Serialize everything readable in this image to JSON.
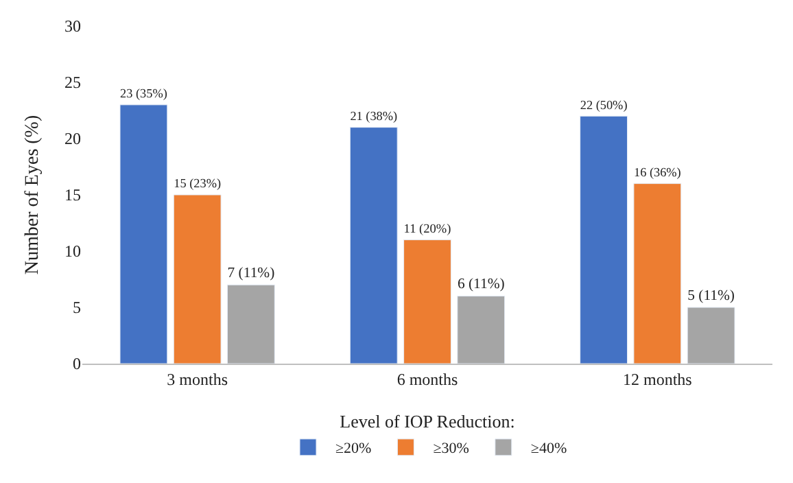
{
  "chart_data": {
    "type": "bar",
    "ylabel": "Number of Eyes (%)",
    "legend_title": "Level of IOP Reduction:",
    "categories": [
      "3 months",
      "6 months",
      "12 months"
    ],
    "series": [
      {
        "name": "≥20%",
        "color": "#4472c4",
        "values": [
          23,
          21,
          22
        ],
        "value_labels": [
          "23 (35%)",
          "21 (38%)",
          "22 (50%)"
        ]
      },
      {
        "name": "≥30%",
        "color": "#ed7d31",
        "values": [
          15,
          11,
          16
        ],
        "value_labels": [
          "15 (23%)",
          "11 (20%)",
          "16 (36%)"
        ]
      },
      {
        "name": "≥40%",
        "color": "#a5a5a5",
        "values": [
          7,
          6,
          5
        ],
        "value_labels": [
          "7 (11%)",
          "6 (11%)",
          "5 (11%)"
        ]
      }
    ],
    "ylim": [
      0,
      30
    ],
    "yticks": [
      0,
      5,
      10,
      15,
      20,
      25,
      30
    ],
    "legend": "bottom"
  }
}
